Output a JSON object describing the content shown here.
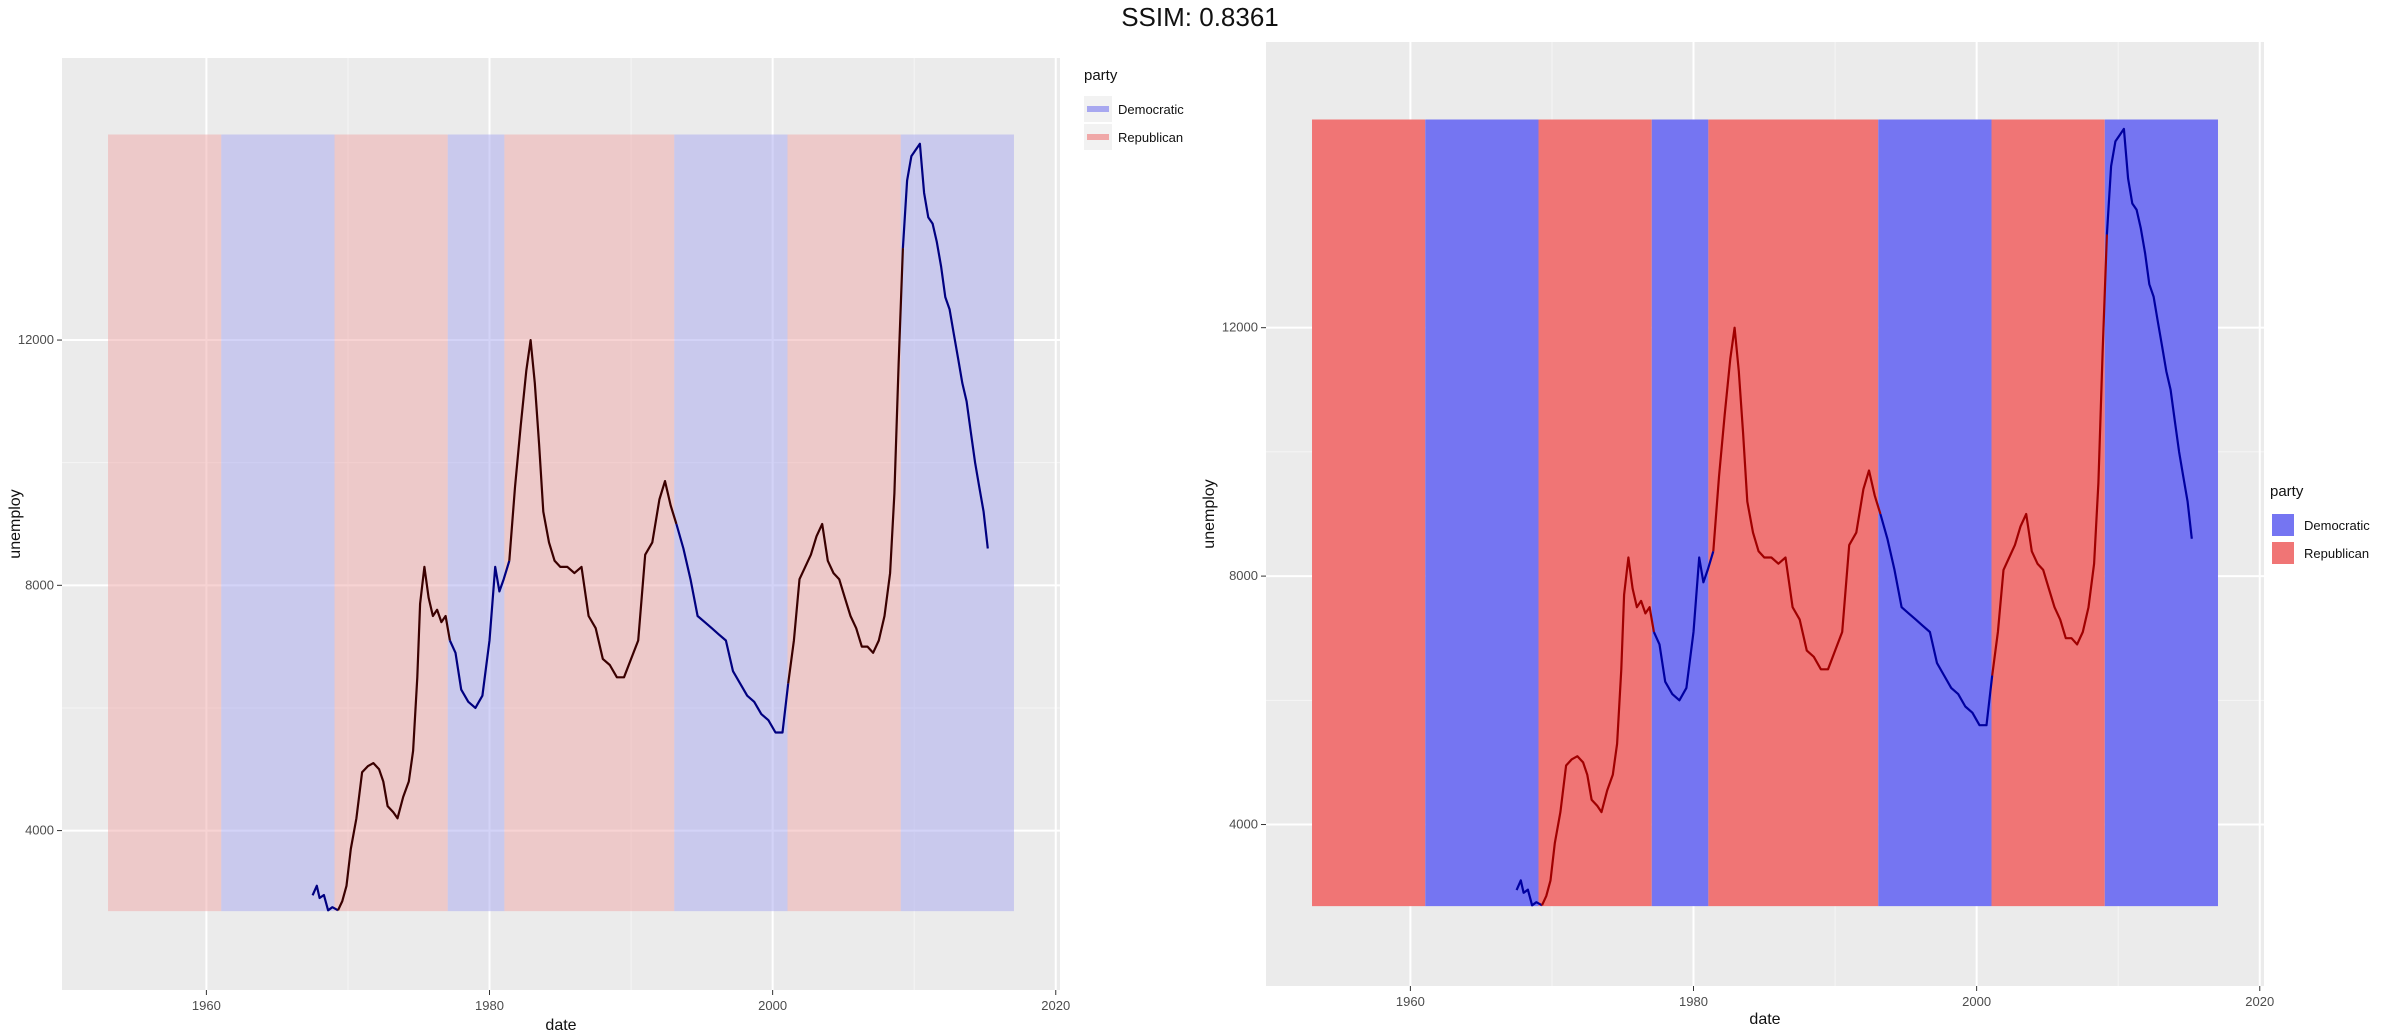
{
  "figure_title": "SSIM: 0.8361",
  "chart_data": [
    {
      "type": "line",
      "panel": "left",
      "xlabel": "date",
      "ylabel": "unemploy",
      "xlim": [
        1949.8,
        2020.3
      ],
      "ylim": [
        1400,
        16600
      ],
      "x_ticks": [
        1960,
        1980,
        2000,
        2020
      ],
      "y_ticks": [
        4000,
        8000,
        12000
      ],
      "grid": true,
      "legend": {
        "title": "party",
        "placement": "top-right",
        "key_style": "line",
        "entries": [
          {
            "name": "Democratic",
            "color": "#a8a8f0"
          },
          {
            "name": "Republican",
            "color": "#f0a8a8"
          }
        ]
      },
      "band_opacity": 0.5,
      "band_ymin": 2686,
      "band_ymax": 15352,
      "line_color_democratic": "#000080",
      "line_color_republican": "#3a0000"
    },
    {
      "type": "line",
      "panel": "right",
      "xlabel": "date",
      "ylabel": "unemploy",
      "xlim": [
        1949.8,
        2020.3
      ],
      "ylim": [
        1400,
        16600
      ],
      "x_ticks": [
        1960,
        1980,
        2000,
        2020
      ],
      "y_ticks": [
        4000,
        8000,
        12000
      ],
      "grid": true,
      "legend": {
        "title": "party",
        "placement": "right",
        "key_style": "fill",
        "entries": [
          {
            "name": "Democratic",
            "color": "#7575f2"
          },
          {
            "name": "Republican",
            "color": "#f07575"
          }
        ]
      },
      "band_opacity": 1,
      "band_ymin": 2686,
      "band_ymax": 15352,
      "line_color_democratic": "#0000a0",
      "line_color_republican": "#a00000"
    }
  ],
  "presidencies": [
    {
      "start": 1953.05,
      "end": 1961.05,
      "party": "Republican"
    },
    {
      "start": 1961.05,
      "end": 1969.05,
      "party": "Democratic"
    },
    {
      "start": 1969.05,
      "end": 1977.05,
      "party": "Republican"
    },
    {
      "start": 1977.05,
      "end": 1981.05,
      "party": "Democratic"
    },
    {
      "start": 1981.05,
      "end": 1993.05,
      "party": "Republican"
    },
    {
      "start": 1993.05,
      "end": 2001.05,
      "party": "Democratic"
    },
    {
      "start": 2001.05,
      "end": 2009.05,
      "party": "Republican"
    },
    {
      "start": 2009.05,
      "end": 2017.05,
      "party": "Democratic"
    }
  ],
  "unemploy_series": {
    "x": [
      1967.5,
      1967.8,
      1968.0,
      1968.3,
      1968.6,
      1968.9,
      1969.3,
      1969.6,
      1969.9,
      1970.2,
      1970.6,
      1971.0,
      1971.4,
      1971.8,
      1972.2,
      1972.5,
      1972.8,
      1973.2,
      1973.5,
      1973.9,
      1974.3,
      1974.6,
      1974.9,
      1975.1,
      1975.4,
      1975.7,
      1976.0,
      1976.3,
      1976.6,
      1976.9,
      1977.2,
      1977.6,
      1978.0,
      1978.5,
      1979.0,
      1979.5,
      1980.0,
      1980.4,
      1980.7,
      1981.0,
      1981.4,
      1981.8,
      1982.2,
      1982.6,
      1982.9,
      1983.2,
      1983.5,
      1983.8,
      1984.2,
      1984.6,
      1985.0,
      1985.5,
      1986.0,
      1986.5,
      1987.0,
      1987.5,
      1988.0,
      1988.5,
      1989.0,
      1989.5,
      1990.0,
      1990.5,
      1991.0,
      1991.5,
      1992.0,
      1992.4,
      1992.8,
      1993.2,
      1993.7,
      1994.2,
      1994.7,
      1995.2,
      1995.7,
      1996.2,
      1996.7,
      1997.2,
      1997.7,
      1998.2,
      1998.7,
      1999.2,
      1999.7,
      2000.2,
      2000.7,
      2001.1,
      2001.5,
      2001.9,
      2002.3,
      2002.7,
      2003.1,
      2003.5,
      2003.9,
      2004.3,
      2004.7,
      2005.1,
      2005.5,
      2005.9,
      2006.3,
      2006.7,
      2007.1,
      2007.5,
      2007.9,
      2008.3,
      2008.6,
      2008.9,
      2009.2,
      2009.5,
      2009.8,
      2010.1,
      2010.4,
      2010.7,
      2011.0,
      2011.3,
      2011.6,
      2011.9,
      2012.2,
      2012.5,
      2012.8,
      2013.1,
      2013.4,
      2013.7,
      2014.0,
      2014.3,
      2014.6,
      2014.9,
      2015.2
    ],
    "y": [
      2944,
      3100,
      2900,
      2950,
      2700,
      2750,
      2700,
      2850,
      3100,
      3700,
      4200,
      4950,
      5050,
      5100,
      5000,
      4800,
      4400,
      4300,
      4200,
      4550,
      4800,
      5300,
      6500,
      7700,
      8300,
      7800,
      7500,
      7600,
      7400,
      7500,
      7100,
      6900,
      6300,
      6100,
      6000,
      6200,
      7100,
      8300,
      7900,
      8100,
      8400,
      9600,
      10600,
      11500,
      12000,
      11300,
      10300,
      9200,
      8700,
      8400,
      8300,
      8300,
      8200,
      8300,
      7500,
      7300,
      6800,
      6700,
      6500,
      6500,
      6800,
      7100,
      8500,
      8700,
      9400,
      9700,
      9300,
      9000,
      8600,
      8100,
      7500,
      7400,
      7300,
      7200,
      7100,
      6600,
      6400,
      6200,
      6100,
      5900,
      5800,
      5600,
      5600,
      6400,
      7100,
      8100,
      8300,
      8500,
      8800,
      9000,
      8400,
      8200,
      8100,
      7800,
      7500,
      7300,
      7000,
      7000,
      6900,
      7100,
      7500,
      8200,
      9500,
      11600,
      13500,
      14600,
      15000,
      15100,
      15200,
      14400,
      14000,
      13900,
      13600,
      13200,
      12700,
      12500,
      12100,
      11700,
      11300,
      11000,
      10500,
      10000,
      9600,
      9200,
      8600
    ]
  }
}
